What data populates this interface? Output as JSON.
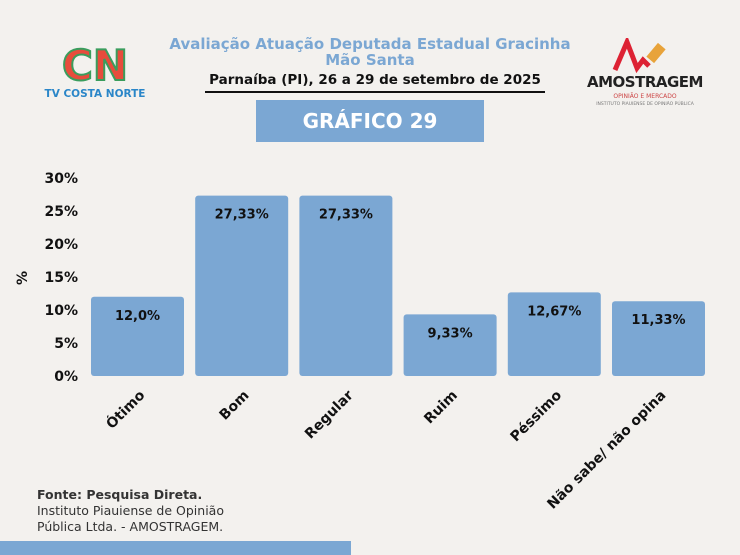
{
  "header": {
    "title": "Avaliação Atuação Deputada Estadual Gracinha Mão Santa",
    "subtitle": "Parnaíba (PI), 26 a 29 de setembro de 2025",
    "badge": "GRÁFICO 29"
  },
  "logos": {
    "left_text": "TV COSTA NORTE",
    "right_name": "AMOSTRAGEM",
    "right_sub": "OPINIÃO E MERCADO",
    "right_sub2": "INSTITUTO PIAUIENSE DE OPINIÃO PÚBLICA"
  },
  "footer": {
    "source_bold": "Fonte: Pesquisa Direta.",
    "source_line1": "Instituto Piauiense de Opinião",
    "source_line2": "Pública Ltda. - AMOSTRAGEM."
  },
  "colors": {
    "bar": "#7ba7d3",
    "accent": "#7ba7d3"
  },
  "chart_data": {
    "type": "bar",
    "title": "",
    "xlabel": "",
    "ylabel": "%",
    "ylim": [
      0,
      30
    ],
    "yticks": [
      0,
      5,
      10,
      15,
      20,
      25,
      30
    ],
    "ytick_labels": [
      "0%",
      "5%",
      "10%",
      "15%",
      "20%",
      "25%",
      "30%"
    ],
    "categories": [
      "Ótimo",
      "Bom",
      "Regular",
      "Ruim",
      "Péssimo",
      "Não sabe/ não opina"
    ],
    "values": [
      12.0,
      27.33,
      27.33,
      9.33,
      12.67,
      11.33
    ],
    "data_labels": [
      "12,0%",
      "27,33%",
      "27,33%",
      "9,33%",
      "12,67%",
      "11,33%"
    ],
    "grid": false
  }
}
